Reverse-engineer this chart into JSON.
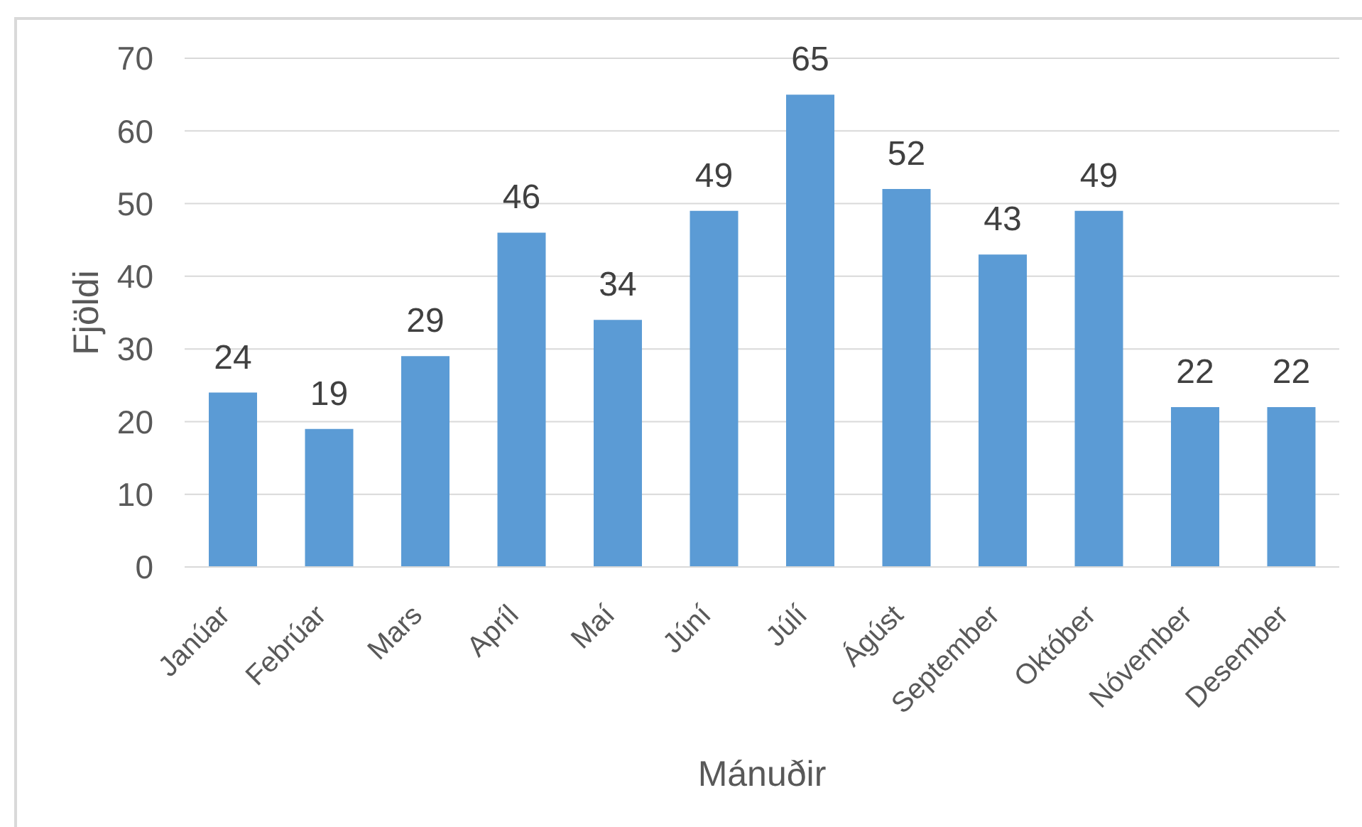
{
  "chart_data": {
    "type": "bar",
    "xlabel": "Mánuðir",
    "ylabel": "Fjöldi",
    "categories": [
      "Janúar",
      "Febrúar",
      "Mars",
      "Apríl",
      "Maí",
      "Júní",
      "Júlí",
      "Ágúst",
      "September",
      "Október",
      "Nóvember",
      "Desember"
    ],
    "values": [
      24,
      19,
      29,
      46,
      34,
      49,
      65,
      52,
      43,
      49,
      22,
      22
    ],
    "color": "#5b9bd5",
    "ylim": [
      0,
      70
    ],
    "yticks": [
      0,
      10,
      20,
      30,
      40,
      50,
      60,
      70
    ],
    "grid": "y",
    "data_labels": true
  }
}
